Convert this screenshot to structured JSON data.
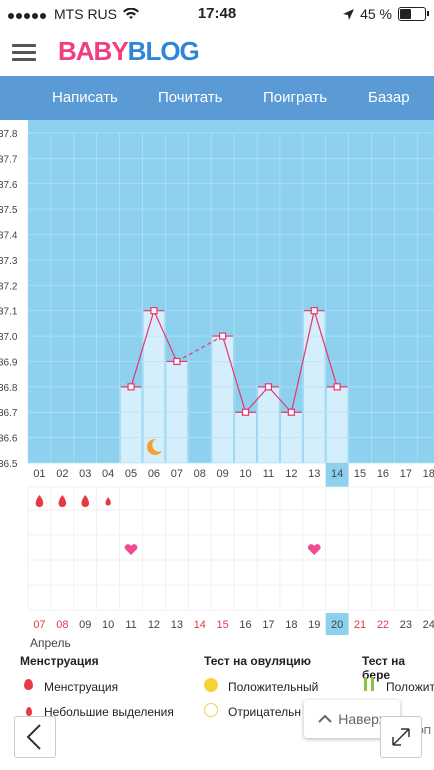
{
  "status": {
    "carrier": "MTS RUS",
    "time": "17:48",
    "battery": "45 %",
    "battery_level": 0.45
  },
  "header": {
    "logo_part1": "BABY",
    "logo_part2": "BLOG"
  },
  "nav": {
    "items": [
      "Написать",
      "Почитать",
      "Поиграть",
      "Базар"
    ]
  },
  "chart_data": {
    "type": "line",
    "yticks": [
      "37.8",
      "37.7",
      "37.6",
      "37.5",
      "37.4",
      "37.3",
      "37.2",
      "37.1",
      "37.0",
      "36.9",
      "36.8",
      "36.7",
      "36.6",
      "36.5"
    ],
    "ylim": [
      36.5,
      37.8
    ],
    "top_days": [
      "01",
      "02",
      "03",
      "04",
      "05",
      "06",
      "07",
      "08",
      "09",
      "10",
      "11",
      "12",
      "13",
      "14",
      "15",
      "16",
      "17",
      "18"
    ],
    "highlight_top": "14",
    "bottom_dates": [
      "07",
      "08",
      "09",
      "10",
      "11",
      "12",
      "13",
      "14",
      "15",
      "16",
      "17",
      "18",
      "19",
      "20",
      "21",
      "22",
      "23",
      "24"
    ],
    "weekend_dates": [
      "07",
      "08",
      "14",
      "15",
      "21",
      "22"
    ],
    "highlight_bottom": "20",
    "month": "Апрель",
    "points": [
      {
        "day": 5,
        "temp": 36.8
      },
      {
        "day": 6,
        "temp": 37.1
      },
      {
        "day": 7,
        "temp": 36.9
      },
      {
        "day": 9,
        "temp": 37.0
      },
      {
        "day": 10,
        "temp": 36.7
      },
      {
        "day": 11,
        "temp": 36.8
      },
      {
        "day": 12,
        "temp": 36.7
      },
      {
        "day": 13,
        "temp": 37.1
      },
      {
        "day": 14,
        "temp": 36.8
      }
    ],
    "dashed_segment": [
      7,
      9
    ],
    "moon_day": 6,
    "menstruation_days": [
      1,
      2,
      3
    ],
    "small_discharge_days": [
      4
    ],
    "heart_days": [
      5,
      13
    ]
  },
  "legend": {
    "menstruation_title": "Менструация",
    "menstruation_item": "Менструация",
    "small_discharge": "Небольшие выделения",
    "ovulation_title": "Тест на овуляцию",
    "positive": "Положительный",
    "negative": "Отрицательн",
    "pregnancy_title": "Тест на бере",
    "pregnancy_positive": "Положит",
    "pregnancy_extra": "ЮОП"
  },
  "toptip": {
    "label": "Наверх"
  }
}
